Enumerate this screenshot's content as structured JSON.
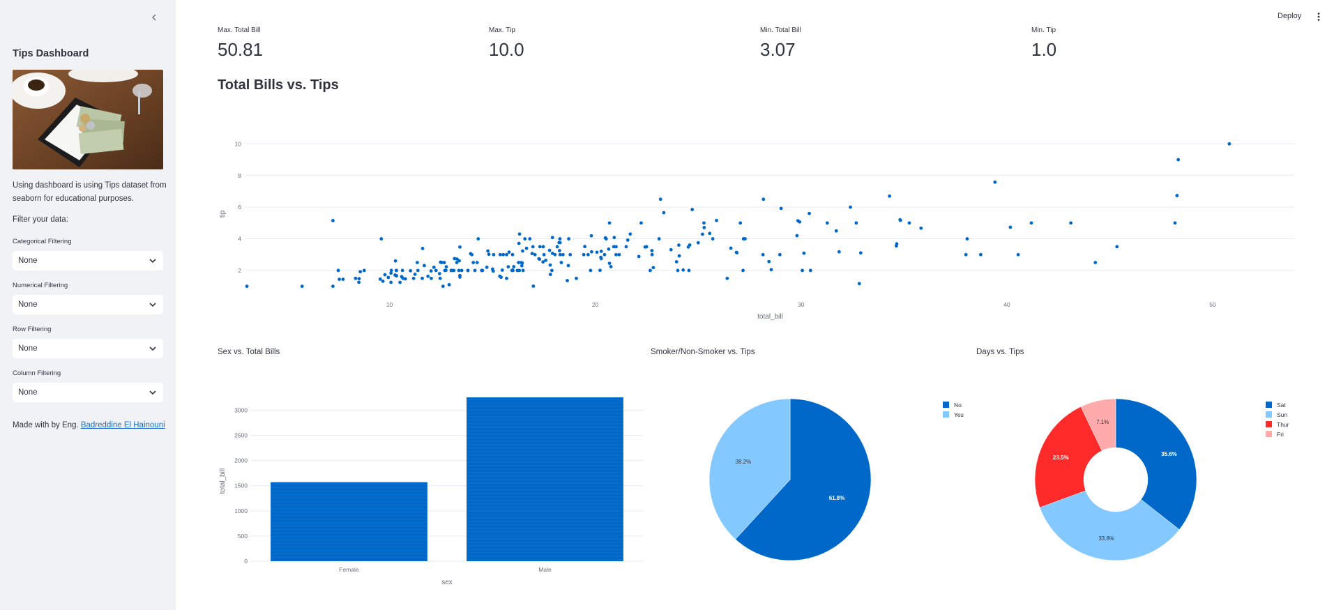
{
  "sidebar": {
    "title": "Tips Dashboard",
    "description": "Using dashboard is using Tips dataset from seaborn for educational purposes.",
    "filter_heading": "Filter your data:",
    "filters": [
      {
        "label": "Categorical Filtering",
        "value": "None"
      },
      {
        "label": "Numerical Filtering",
        "value": "None"
      },
      {
        "label": "Row Filtering",
        "value": "None"
      },
      {
        "label": "Column Filtering",
        "value": "None"
      }
    ],
    "footer_prefix": "Made with by Eng.",
    "footer_link": "Badreddine El Hainouni"
  },
  "header": {
    "deploy_label": "Deploy"
  },
  "metrics": [
    {
      "label": "Max. Total Bill",
      "value": "50.81"
    },
    {
      "label": "Max. Tip",
      "value": "10.0"
    },
    {
      "label": "Min. Total Bill",
      "value": "3.07"
    },
    {
      "label": "Min. Tip",
      "value": "1.0"
    }
  ],
  "section_title": "Total Bills vs. Tips",
  "colors": {
    "dark_blue": "#0068c9",
    "light_blue": "#83c9ff",
    "red": "#ff2b2b",
    "pink": "#ffabab"
  },
  "chart_data": [
    {
      "type": "scatter",
      "xlabel": "total_bill",
      "ylabel": "tip",
      "xticks": [
        10,
        20,
        30,
        40,
        50
      ],
      "yticks": [
        2,
        4,
        6,
        8,
        10
      ],
      "xlim": [
        3,
        54
      ],
      "ylim": [
        0.5,
        10.5
      ],
      "grid": true,
      "points": [
        [
          16.99,
          1.01
        ],
        [
          10.34,
          1.66
        ],
        [
          21.01,
          3.5
        ],
        [
          23.68,
          3.31
        ],
        [
          24.59,
          3.61
        ],
        [
          25.29,
          4.71
        ],
        [
          8.77,
          2.0
        ],
        [
          26.88,
          3.12
        ],
        [
          15.04,
          1.96
        ],
        [
          14.78,
          3.23
        ],
        [
          10.27,
          1.71
        ],
        [
          35.26,
          5.0
        ],
        [
          15.42,
          1.57
        ],
        [
          18.43,
          3.0
        ],
        [
          14.83,
          3.02
        ],
        [
          21.58,
          3.92
        ],
        [
          10.33,
          1.67
        ],
        [
          16.29,
          3.71
        ],
        [
          16.97,
          3.5
        ],
        [
          20.65,
          3.35
        ],
        [
          17.92,
          4.08
        ],
        [
          20.29,
          2.75
        ],
        [
          15.77,
          2.23
        ],
        [
          39.42,
          7.58
        ],
        [
          19.82,
          3.18
        ],
        [
          17.81,
          2.34
        ],
        [
          13.37,
          2.0
        ],
        [
          12.69,
          2.0
        ],
        [
          21.7,
          4.3
        ],
        [
          19.65,
          3.0
        ],
        [
          9.55,
          1.45
        ],
        [
          18.35,
          2.5
        ],
        [
          15.06,
          3.0
        ],
        [
          20.69,
          2.45
        ],
        [
          17.78,
          3.27
        ],
        [
          24.06,
          3.6
        ],
        [
          16.31,
          2.0
        ],
        [
          16.93,
          3.07
        ],
        [
          18.69,
          2.31
        ],
        [
          31.27,
          5.0
        ],
        [
          16.04,
          2.24
        ],
        [
          17.46,
          2.54
        ],
        [
          13.94,
          3.06
        ],
        [
          9.68,
          1.32
        ],
        [
          30.4,
          5.6
        ],
        [
          18.29,
          3.0
        ],
        [
          22.23,
          5.0
        ],
        [
          32.4,
          6.0
        ],
        [
          28.55,
          2.05
        ],
        [
          18.04,
          3.0
        ],
        [
          12.54,
          2.5
        ],
        [
          10.29,
          2.6
        ],
        [
          34.81,
          5.2
        ],
        [
          9.94,
          1.56
        ],
        [
          25.56,
          4.34
        ],
        [
          19.49,
          3.51
        ],
        [
          38.01,
          3.0
        ],
        [
          26.41,
          1.5
        ],
        [
          11.24,
          1.76
        ],
        [
          48.27,
          6.73
        ],
        [
          20.29,
          3.21
        ],
        [
          13.81,
          2.0
        ],
        [
          11.02,
          1.98
        ],
        [
          18.29,
          3.76
        ],
        [
          17.59,
          2.64
        ],
        [
          20.08,
          3.15
        ],
        [
          16.45,
          2.47
        ],
        [
          3.07,
          1.0
        ],
        [
          20.23,
          2.01
        ],
        [
          15.01,
          2.09
        ],
        [
          12.02,
          1.97
        ],
        [
          17.07,
          3.0
        ],
        [
          26.86,
          3.14
        ],
        [
          25.28,
          5.0
        ],
        [
          14.73,
          2.2
        ],
        [
          10.51,
          1.25
        ],
        [
          17.92,
          3.08
        ],
        [
          27.2,
          4.0
        ],
        [
          22.76,
          3.0
        ],
        [
          17.29,
          2.71
        ],
        [
          19.44,
          3.0
        ],
        [
          16.66,
          3.4
        ],
        [
          10.07,
          1.83
        ],
        [
          32.68,
          5.0
        ],
        [
          15.98,
          2.03
        ],
        [
          34.83,
          5.17
        ],
        [
          13.03,
          2.0
        ],
        [
          18.28,
          4.0
        ],
        [
          24.71,
          5.85
        ],
        [
          21.16,
          3.0
        ],
        [
          28.97,
          3.0
        ],
        [
          22.49,
          3.5
        ],
        [
          5.75,
          1.0
        ],
        [
          16.32,
          4.3
        ],
        [
          22.75,
          3.25
        ],
        [
          40.17,
          4.73
        ],
        [
          27.28,
          4.0
        ],
        [
          12.03,
          1.5
        ],
        [
          21.01,
          3.0
        ],
        [
          12.46,
          1.5
        ],
        [
          11.35,
          2.5
        ],
        [
          15.38,
          3.0
        ],
        [
          44.3,
          2.5
        ],
        [
          22.42,
          3.48
        ],
        [
          20.92,
          4.08
        ],
        [
          15.36,
          1.64
        ],
        [
          20.49,
          4.06
        ],
        [
          25.21,
          4.29
        ],
        [
          18.24,
          3.76
        ],
        [
          14.31,
          4.0
        ],
        [
          14.0,
          3.0
        ],
        [
          7.25,
          1.0
        ],
        [
          38.07,
          4.0
        ],
        [
          23.95,
          2.55
        ],
        [
          25.71,
          4.0
        ],
        [
          17.31,
          3.5
        ],
        [
          29.93,
          5.07
        ],
        [
          10.65,
          1.5
        ],
        [
          12.43,
          1.8
        ],
        [
          24.08,
          2.92
        ],
        [
          11.69,
          2.31
        ],
        [
          13.42,
          1.68
        ],
        [
          14.26,
          2.5
        ],
        [
          15.95,
          2.0
        ],
        [
          12.48,
          2.52
        ],
        [
          29.8,
          4.2
        ],
        [
          8.52,
          1.48
        ],
        [
          14.52,
          2.0
        ],
        [
          11.38,
          2.0
        ],
        [
          22.82,
          2.18
        ],
        [
          19.08,
          1.5
        ],
        [
          20.27,
          2.83
        ],
        [
          11.17,
          1.5
        ],
        [
          12.26,
          2.0
        ],
        [
          18.26,
          3.25
        ],
        [
          8.51,
          1.25
        ],
        [
          10.33,
          2.0
        ],
        [
          14.15,
          2.0
        ],
        [
          16.0,
          2.0
        ],
        [
          13.16,
          2.75
        ],
        [
          17.47,
          3.5
        ],
        [
          34.3,
          6.7
        ],
        [
          41.19,
          5.0
        ],
        [
          27.05,
          5.0
        ],
        [
          16.43,
          2.3
        ],
        [
          8.35,
          1.5
        ],
        [
          18.64,
          1.36
        ],
        [
          11.87,
          1.63
        ],
        [
          9.78,
          1.73
        ],
        [
          7.51,
          2.0
        ],
        [
          14.07,
          2.5
        ],
        [
          13.13,
          2.0
        ],
        [
          17.26,
          2.74
        ],
        [
          24.55,
          2.0
        ],
        [
          19.77,
          2.0
        ],
        [
          29.85,
          5.14
        ],
        [
          48.17,
          5.0
        ],
        [
          25.0,
          3.75
        ],
        [
          13.39,
          2.61
        ],
        [
          16.49,
          2.0
        ],
        [
          21.5,
          3.5
        ],
        [
          12.66,
          2.5
        ],
        [
          16.21,
          2.0
        ],
        [
          13.81,
          2.0
        ],
        [
          17.51,
          3.0
        ],
        [
          24.52,
          3.48
        ],
        [
          20.76,
          2.24
        ],
        [
          31.71,
          4.5
        ],
        [
          10.59,
          1.61
        ],
        [
          10.63,
          2.0
        ],
        [
          50.81,
          10.0
        ],
        [
          15.81,
          3.16
        ],
        [
          7.25,
          5.15
        ],
        [
          31.85,
          3.18
        ],
        [
          16.82,
          4.0
        ],
        [
          32.9,
          3.11
        ],
        [
          17.89,
          2.0
        ],
        [
          14.48,
          2.0
        ],
        [
          9.6,
          4.0
        ],
        [
          34.63,
          3.55
        ],
        [
          34.65,
          3.68
        ],
        [
          23.33,
          5.65
        ],
        [
          45.35,
          3.5
        ],
        [
          23.17,
          6.5
        ],
        [
          40.55,
          3.0
        ],
        [
          20.69,
          5.0
        ],
        [
          20.9,
          3.5
        ],
        [
          30.46,
          2.0
        ],
        [
          18.15,
          3.5
        ],
        [
          23.1,
          4.0
        ],
        [
          15.69,
          1.5
        ],
        [
          19.81,
          4.19
        ],
        [
          28.44,
          2.56
        ],
        [
          15.48,
          2.02
        ],
        [
          16.58,
          4.0
        ],
        [
          7.56,
          1.44
        ],
        [
          10.34,
          2.0
        ],
        [
          43.11,
          5.0
        ],
        [
          13.0,
          2.0
        ],
        [
          13.51,
          2.0
        ],
        [
          18.71,
          4.0
        ],
        [
          12.74,
          2.01
        ],
        [
          13.0,
          2.0
        ],
        [
          16.4,
          2.5
        ],
        [
          20.53,
          4.0
        ],
        [
          16.47,
          3.23
        ],
        [
          26.59,
          3.41
        ],
        [
          38.73,
          3.0
        ],
        [
          24.27,
          2.03
        ],
        [
          12.76,
          2.23
        ],
        [
          30.06,
          2.0
        ],
        [
          25.89,
          5.16
        ],
        [
          48.33,
          9.0
        ],
        [
          13.27,
          2.5
        ],
        [
          28.17,
          6.5
        ],
        [
          12.9,
          1.1
        ],
        [
          28.15,
          3.0
        ],
        [
          11.59,
          1.5
        ],
        [
          7.74,
          1.44
        ],
        [
          30.14,
          3.09
        ],
        [
          12.16,
          2.2
        ],
        [
          13.42,
          3.48
        ],
        [
          8.58,
          1.92
        ],
        [
          15.98,
          3.0
        ],
        [
          13.42,
          1.58
        ],
        [
          16.27,
          2.5
        ],
        [
          10.09,
          2.0
        ],
        [
          20.45,
          3.0
        ],
        [
          13.28,
          2.72
        ],
        [
          22.12,
          2.88
        ],
        [
          24.01,
          2.0
        ],
        [
          15.69,
          3.0
        ],
        [
          11.61,
          3.39
        ],
        [
          10.77,
          1.47
        ],
        [
          15.53,
          3.0
        ],
        [
          10.07,
          1.25
        ],
        [
          12.6,
          1.0
        ],
        [
          32.83,
          1.17
        ],
        [
          35.83,
          4.67
        ],
        [
          29.03,
          5.92
        ],
        [
          27.18,
          2.0
        ],
        [
          22.67,
          2.0
        ],
        [
          17.82,
          1.75
        ],
        [
          18.78,
          3.0
        ]
      ]
    },
    {
      "type": "bar",
      "title": "Sex vs. Total Bills",
      "categories": [
        "Female",
        "Male"
      ],
      "values": [
        1570.95,
        3256.82
      ],
      "xlabel": "sex",
      "ylabel": "total_bill",
      "yticks": [
        0,
        500,
        1000,
        1500,
        2000,
        2500,
        3000
      ],
      "ylim": [
        0,
        3450
      ],
      "grid": true
    },
    {
      "type": "pie",
      "title": "Smoker/Non-Smoker vs. Tips",
      "labels": [
        "No",
        "Yes"
      ],
      "values": [
        61.8,
        38.2
      ],
      "slice_labels": [
        "61.8%",
        "38.2%"
      ],
      "legend": "top-right"
    },
    {
      "type": "pie",
      "title": "Days vs. Tips",
      "donut": true,
      "labels": [
        "Sat",
        "Sun",
        "Thur",
        "Fri"
      ],
      "values": [
        35.6,
        33.8,
        23.5,
        7.1
      ],
      "slice_labels": [
        "35.6%",
        "33.8%",
        "23.5%",
        "7.1%"
      ],
      "legend": "top-right"
    }
  ]
}
